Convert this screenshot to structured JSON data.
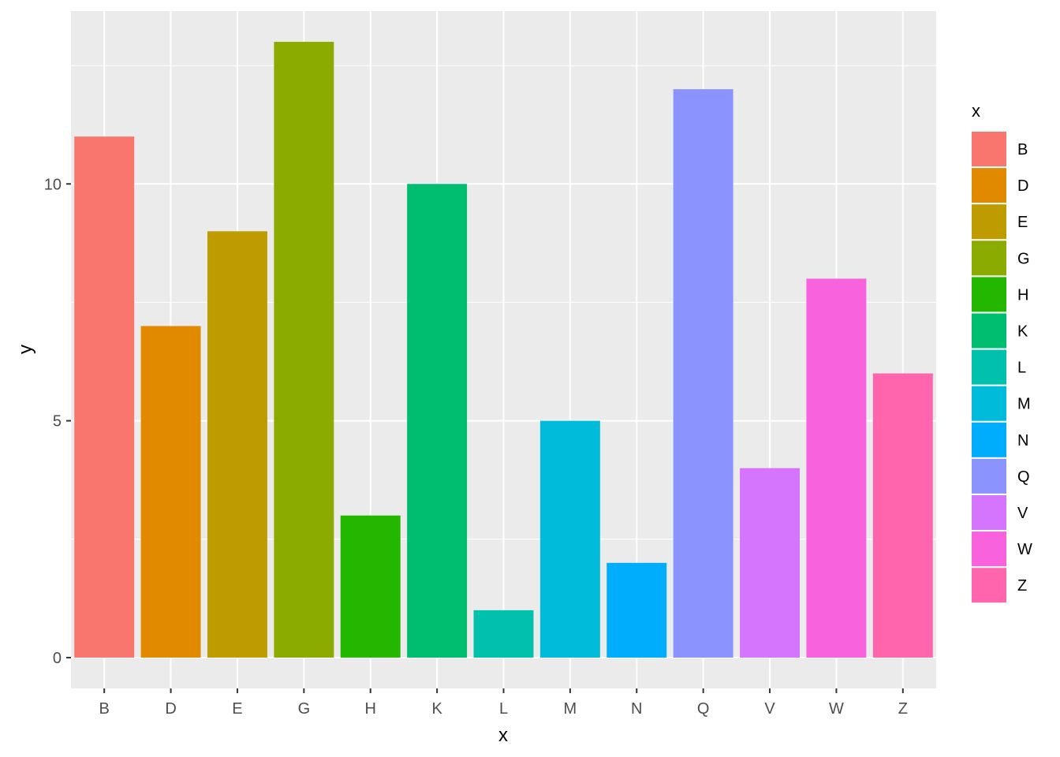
{
  "chart_data": {
    "type": "bar",
    "title": "",
    "xlabel": "x",
    "ylabel": "y",
    "categories": [
      "B",
      "D",
      "E",
      "G",
      "H",
      "K",
      "L",
      "M",
      "N",
      "Q",
      "V",
      "W",
      "Z"
    ],
    "values": [
      11,
      7,
      9,
      13,
      3,
      10,
      1,
      5,
      2,
      12,
      4,
      8,
      6
    ],
    "colors": [
      "#F8766D",
      "#E18A00",
      "#BE9C00",
      "#8CAB00",
      "#24B700",
      "#00BE70",
      "#00C1AB",
      "#00BBDA",
      "#00ACFC",
      "#8B93FF",
      "#D575FE",
      "#F962DD",
      "#FF65AC"
    ],
    "ylim": [
      -0.65,
      13.65
    ],
    "yticks": [
      0,
      5,
      10
    ],
    "ytick_labels": [
      "0",
      "5",
      "10"
    ],
    "grid": true,
    "panel_background": "#EBEBEB",
    "grid_color": "#FFFFFF",
    "legend": {
      "title": "x",
      "position": "right",
      "entries": [
        "B",
        "D",
        "E",
        "G",
        "H",
        "K",
        "L",
        "M",
        "N",
        "Q",
        "V",
        "W",
        "Z"
      ]
    }
  }
}
